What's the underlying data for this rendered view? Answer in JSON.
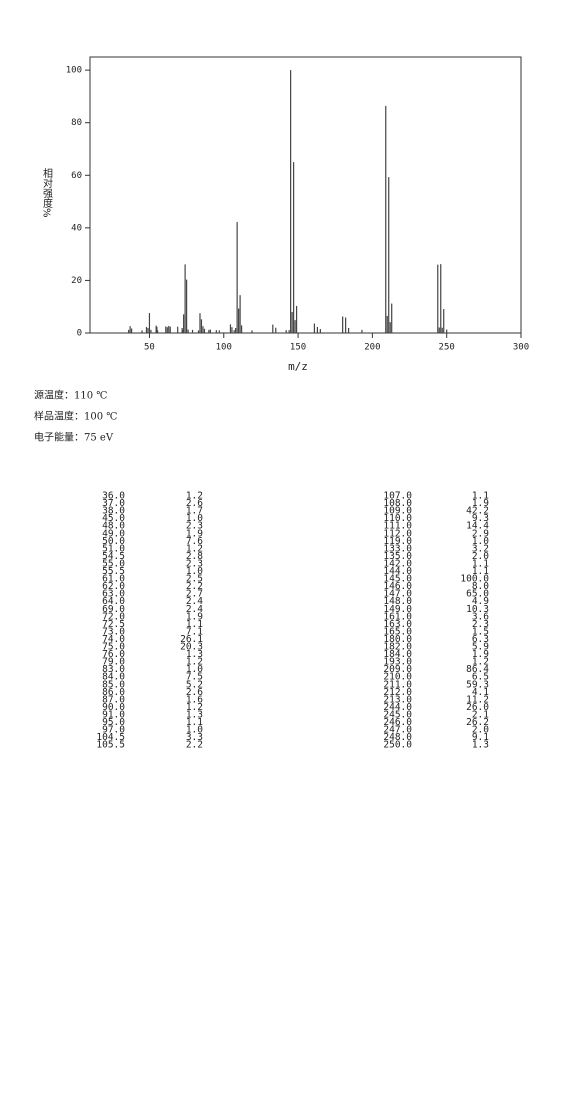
{
  "chart_data": {
    "type": "bar",
    "xlabel": "m/z",
    "ylabel": "相对强度%",
    "xlim": [
      10,
      300
    ],
    "ylim": [
      0,
      105
    ],
    "xticks": [
      50,
      100,
      150,
      200,
      250,
      300
    ],
    "yticks": [
      0,
      20,
      40,
      60,
      80,
      100
    ],
    "color": "#444444",
    "x": [
      36,
      37,
      38,
      45,
      48,
      49,
      50,
      51,
      54.5,
      55,
      55.5,
      61,
      62,
      63,
      64,
      69,
      72,
      72.5,
      73,
      74,
      75,
      76,
      79,
      83,
      84,
      85,
      86,
      87,
      90,
      91,
      95,
      97,
      104.5,
      105.5,
      107,
      108,
      109,
      110,
      111,
      112,
      119,
      133,
      135,
      142,
      144,
      145,
      146,
      147,
      148,
      149,
      161,
      163,
      165,
      180,
      182,
      184,
      193,
      209,
      210,
      211,
      212,
      213,
      244,
      245,
      246,
      247,
      248,
      250
    ],
    "values": [
      1.2,
      2.6,
      1.7,
      1,
      2.3,
      1.9,
      7.6,
      1.2,
      2.8,
      2.3,
      1,
      2.5,
      2.2,
      2.7,
      2.4,
      2.4,
      1.9,
      1.1,
      7.1,
      26.1,
      20.3,
      1.3,
      1.2,
      1,
      7.5,
      5.2,
      2.6,
      1.6,
      1.2,
      1.3,
      1.1,
      1,
      3.3,
      2.2,
      1.1,
      1.9,
      42.2,
      9.3,
      14.4,
      2.9,
      1,
      3.2,
      2,
      1.1,
      1.1,
      100,
      8,
      65,
      4.9,
      10.3,
      3.6,
      2.3,
      1.5,
      6.3,
      5.9,
      1.9,
      1.2,
      86.4,
      6.5,
      59.3,
      4.1,
      11.2,
      26,
      2.1,
      26.2,
      2,
      9.1,
      1.3
    ]
  },
  "info": [
    "源温度：110  ℃",
    "样品温度：100 ℃",
    "电子能量：75 eV"
  ],
  "table": {
    "rows": [
      [
        "36.0",
        "1.2",
        "107.0",
        "1.1"
      ],
      [
        "37.0",
        "2.6",
        "108.0",
        "1.9"
      ],
      [
        "38.0",
        "1.7",
        "109.0",
        "42.2"
      ],
      [
        "45.0",
        "1.0",
        "110.0",
        "9.3"
      ],
      [
        "48.0",
        "2.3",
        "111.0",
        "14.4"
      ],
      [
        "49.0",
        "1.9",
        "112.0",
        "2.9"
      ],
      [
        "50.0",
        "7.6",
        "119.0",
        "1.0"
      ],
      [
        "51.0",
        "1.2",
        "133.0",
        "3.2"
      ],
      [
        "54.5",
        "2.8",
        "135.0",
        "2.0"
      ],
      [
        "55.0",
        "2.3",
        "142.0",
        "1.1"
      ],
      [
        "55.5",
        "1.0",
        "144.0",
        "1.1"
      ],
      [
        "61.0",
        "2.5",
        "145.0",
        "100.0"
      ],
      [
        "62.0",
        "2.2",
        "146.0",
        "8.0"
      ],
      [
        "63.0",
        "2.7",
        "147.0",
        "65.0"
      ],
      [
        "64.0",
        "2.4",
        "148.0",
        "4.9"
      ],
      [
        "69.0",
        "2.4",
        "149.0",
        "10.3"
      ],
      [
        "72.0",
        "1.9",
        "161.0",
        "3.6"
      ],
      [
        "72.5",
        "1.1",
        "163.0",
        "2.3"
      ],
      [
        "73.0",
        "7.1",
        "165.0",
        "1.5"
      ],
      [
        "74.0",
        "26.1",
        "180.0",
        "6.3"
      ],
      [
        "75.0",
        "20.3",
        "182.0",
        "5.9"
      ],
      [
        "76.0",
        "1.3",
        "184.0",
        "1.9"
      ],
      [
        "79.0",
        "1.2",
        "193.0",
        "1.2"
      ],
      [
        "83.0",
        "1.0",
        "209.0",
        "86.4"
      ],
      [
        "84.0",
        "7.5",
        "210.0",
        "6.5"
      ],
      [
        "85.0",
        "5.2",
        "211.0",
        "59.3"
      ],
      [
        "86.0",
        "2.6",
        "212.0",
        "4.1"
      ],
      [
        "87.0",
        "1.6",
        "213.0",
        "11.2"
      ],
      [
        "90.0",
        "1.2",
        "244.0",
        "26.0"
      ],
      [
        "91.0",
        "1.3",
        "245.0",
        "2.1"
      ],
      [
        "95.0",
        "1.1",
        "246.0",
        "26.2"
      ],
      [
        "97.0",
        "1.0",
        "247.0",
        "2.0"
      ],
      [
        "104.5",
        "3.3",
        "248.0",
        "9.1"
      ],
      [
        "105.5",
        "2.2",
        "250.0",
        "1.3"
      ]
    ]
  }
}
